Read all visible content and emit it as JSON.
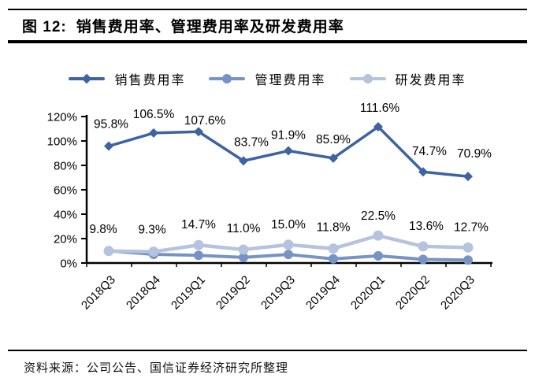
{
  "figure": {
    "label": "图 12:",
    "title": "销售费用率、管理费用率及研发费用率"
  },
  "source_line": "资料来源：公司公告、国信证券经济研究所整理",
  "colors": {
    "sales": "#3E63A3",
    "management": "#7793C6",
    "rnd": "#B6C3DE",
    "axis": "#000000",
    "text": "#000000",
    "background": "#FFFFFF"
  },
  "chart_data": {
    "type": "line",
    "title": "销售费用率、管理费用率及研发费用率",
    "categories": [
      "2018Q3",
      "2018Q4",
      "2019Q1",
      "2019Q2",
      "2019Q3",
      "2019Q4",
      "2020Q1",
      "2020Q2",
      "2020Q3"
    ],
    "series": [
      {
        "name": "销售费用率",
        "values": [
          95.8,
          106.5,
          107.6,
          83.7,
          91.9,
          85.9,
          111.6,
          74.7,
          70.9
        ],
        "data_labels": [
          "95.8%",
          "106.5%",
          "107.6%",
          "83.7%",
          "91.9%",
          "85.9%",
          "111.6%",
          "74.7%",
          "70.9%"
        ],
        "show_labels": true,
        "color": "#3E63A3",
        "marker": "diamond"
      },
      {
        "name": "管理费用率",
        "values": [
          9.9,
          7.1,
          6.3,
          4.6,
          7.0,
          3.4,
          5.9,
          3.0,
          2.4
        ],
        "data_labels": [],
        "show_labels": false,
        "color": "#7793C6",
        "marker": "circle"
      },
      {
        "name": "研发费用率",
        "values": [
          9.8,
          9.3,
          14.7,
          11.0,
          15.0,
          11.8,
          22.5,
          13.6,
          12.7
        ],
        "data_labels": [
          "9.8%",
          "9.3%",
          "14.7%",
          "11.0%",
          "15.0%",
          "11.8%",
          "22.5%",
          "13.6%",
          "12.7%"
        ],
        "show_labels": true,
        "color": "#B6C3DE",
        "marker": "circle"
      }
    ],
    "ylim": [
      0,
      120
    ],
    "ytick_step": 20,
    "ytick_labels": [
      "0%",
      "20%",
      "40%",
      "60%",
      "80%",
      "100%",
      "120%"
    ],
    "xlabel": "",
    "ylabel": "",
    "grid": false,
    "legend_position": "top"
  }
}
